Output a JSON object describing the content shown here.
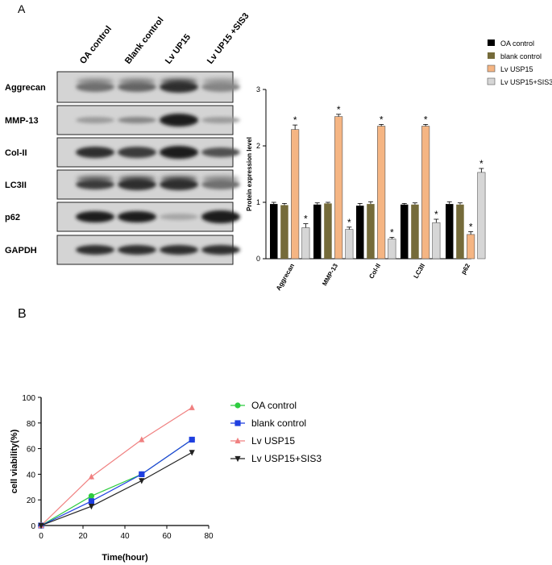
{
  "panel_labels": {
    "a": "A",
    "b": "B"
  },
  "blot": {
    "lanes": [
      "OA control",
      "Blank control",
      "Lv UP15",
      "Lv UP15 +SIS3"
    ],
    "proteins": [
      "Aggrecan",
      "MMP-13",
      "Col-II",
      "LC3II",
      "p62",
      "GAPDH"
    ]
  },
  "chart_data": [
    {
      "type": "bar",
      "title": "",
      "xlabel": "",
      "ylabel": "Protein expression level",
      "ylim": [
        0,
        3
      ],
      "yticks": [
        0,
        1,
        2,
        3
      ],
      "categories": [
        "Aggrecan",
        "MMP-13",
        "Col-II",
        "LC3II",
        "p62"
      ],
      "legend_position": "top-right",
      "series": [
        {
          "name": "OA control",
          "color": "#000000",
          "values": [
            0.97,
            0.96,
            0.94,
            0.96,
            0.97
          ],
          "errors": [
            0.03,
            0.03,
            0.04,
            0.02,
            0.04
          ]
        },
        {
          "name": "blank control",
          "color": "#756b3a",
          "values": [
            0.95,
            0.98,
            0.97,
            0.96,
            0.96
          ],
          "errors": [
            0.03,
            0.02,
            0.04,
            0.03,
            0.03
          ]
        },
        {
          "name": "Lv USP15",
          "color": "#f5b583",
          "values": [
            2.29,
            2.52,
            2.35,
            2.35,
            0.43
          ],
          "errors": [
            0.08,
            0.04,
            0.03,
            0.03,
            0.05
          ]
        },
        {
          "name": "Lv USP15+SIS3",
          "color": "#d6d6d6",
          "values": [
            0.55,
            0.52,
            0.35,
            0.64,
            1.53
          ],
          "errors": [
            0.07,
            0.04,
            0.03,
            0.06,
            0.07
          ]
        }
      ],
      "significance": [
        [],
        [],
        [
          "*",
          "*",
          "*",
          "*",
          "*"
        ],
        [
          "*",
          "*",
          "*",
          "*",
          "*"
        ]
      ]
    },
    {
      "type": "line",
      "title": "",
      "xlabel": "Time(hour)",
      "ylabel": "cell viability(%)",
      "xlim": [
        0,
        80
      ],
      "ylim": [
        0,
        100
      ],
      "xticks": [
        0,
        20,
        40,
        60,
        80
      ],
      "yticks": [
        0,
        20,
        40,
        60,
        80,
        100
      ],
      "legend_position": "right",
      "series": [
        {
          "name": "OA control",
          "color": "#2ecc40",
          "marker": "circle",
          "x": [
            0,
            24,
            48,
            72
          ],
          "y": [
            0,
            23,
            40,
            67
          ]
        },
        {
          "name": "blank control",
          "color": "#1f3fe0",
          "marker": "square",
          "x": [
            0,
            24,
            48,
            72
          ],
          "y": [
            0,
            19,
            40,
            67
          ]
        },
        {
          "name": "Lv USP15",
          "color": "#f08080",
          "marker": "triangle-up",
          "x": [
            0,
            24,
            48,
            72
          ],
          "y": [
            0,
            38,
            67,
            92
          ]
        },
        {
          "name": "Lv USP15+SIS3",
          "color": "#222222",
          "marker": "triangle-down",
          "x": [
            0,
            24,
            48,
            72
          ],
          "y": [
            0,
            15,
            35,
            57
          ]
        }
      ]
    }
  ]
}
